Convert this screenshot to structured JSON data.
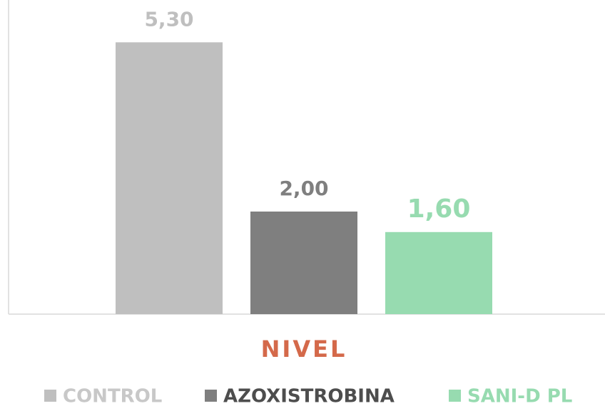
{
  "chart_data": {
    "type": "bar",
    "categories": [
      "NIVEL"
    ],
    "series": [
      {
        "name": "CONTROL",
        "color": "#bfbfbf",
        "values": [
          5.3
        ],
        "value_labels": [
          "5,30"
        ]
      },
      {
        "name": "AZOXISTROBINA",
        "color": "#7f7f7f",
        "values": [
          2.0
        ],
        "value_labels": [
          "2,00"
        ]
      },
      {
        "name": "SANI-D PL",
        "color": "#97dbb0",
        "values": [
          1.6
        ],
        "value_labels": [
          "1,60"
        ]
      }
    ],
    "ylim": [
      0,
      6
    ],
    "legend": "bottom"
  }
}
